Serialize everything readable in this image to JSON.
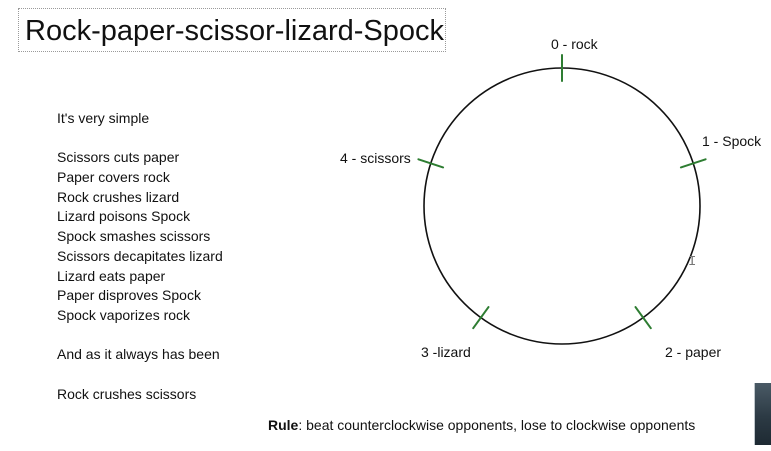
{
  "title": "Rock-paper-scissor-lizard-Spock",
  "intro": "It's very simple",
  "rules": [
    "Scissors cuts paper",
    "Paper covers rock",
    "Rock crushes lizard",
    "Lizard poisons Spock",
    "Spock smashes scissors",
    "Scissors decapitates lizard",
    "Lizard eats paper",
    "Paper disproves Spock",
    "Spock vaporizes rock"
  ],
  "outro": "And as it always has been",
  "final_rule": "Rock crushes scissors",
  "diagram": {
    "labels": {
      "rock": "0 - rock",
      "spock": "1 - Spock",
      "paper": "2 - paper",
      "lizard": "3 -lizard",
      "scissors": "4 - scissors"
    },
    "tick_color": "#2e7d32"
  },
  "bottom_rule": {
    "label": "Rule",
    "text": ": beat counterclockwise opponents, lose to clockwise opponents"
  },
  "cursor_icon": "text-cursor-icon",
  "thumbnail_icon": "video-thumbnail-icon"
}
